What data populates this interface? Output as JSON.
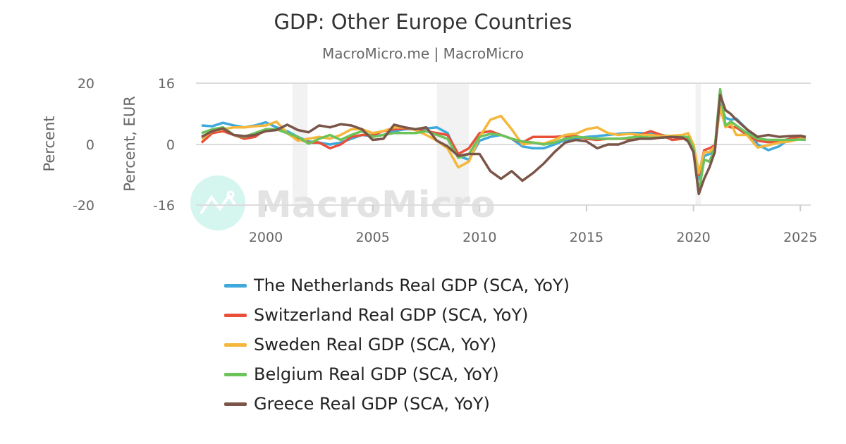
{
  "header": {
    "title": "GDP: Other Europe Countries",
    "subtitle": "MacroMicro.me | MacroMicro"
  },
  "watermark": {
    "text": "MacroMicro",
    "circle_color": "#d5f5ef"
  },
  "chart_data": {
    "type": "line",
    "title": "GDP: Other Europe Countries",
    "subtitle": "MacroMicro.me | MacroMicro",
    "y_axes": [
      {
        "title": "Percent",
        "ticks": [
          "20",
          "0",
          "-20"
        ],
        "range": [
          -20,
          20
        ],
        "side": "left-outer"
      },
      {
        "title": "Percent, EUR",
        "ticks": [
          "16",
          "0",
          "-16"
        ],
        "range": [
          -16,
          16
        ],
        "side": "left-inner"
      }
    ],
    "x_ticks": [
      "2000",
      "2005",
      "2010",
      "2015",
      "2020",
      "2025"
    ],
    "x_range": [
      1997,
      2025.5
    ],
    "grid": true,
    "legend_position": "bottom",
    "recession_bands": [
      [
        2001.25,
        2001.95
      ],
      [
        2008.0,
        2009.5
      ],
      [
        2020.1,
        2020.35
      ]
    ],
    "x": [
      1997.0,
      1997.5,
      1998.0,
      1998.5,
      1999.0,
      1999.5,
      2000.0,
      2000.5,
      2001.0,
      2001.5,
      2002.0,
      2002.5,
      2003.0,
      2003.5,
      2004.0,
      2004.5,
      2005.0,
      2005.5,
      2006.0,
      2006.5,
      2007.0,
      2007.5,
      2008.0,
      2008.5,
      2009.0,
      2009.5,
      2010.0,
      2010.5,
      2011.0,
      2011.5,
      2012.0,
      2012.5,
      2013.0,
      2013.5,
      2014.0,
      2014.5,
      2015.0,
      2015.5,
      2016.0,
      2016.5,
      2017.0,
      2017.5,
      2018.0,
      2018.5,
      2019.0,
      2019.5,
      2019.75,
      2020.0,
      2020.25,
      2020.5,
      2020.75,
      2021.0,
      2021.25,
      2021.5,
      2021.75,
      2022.0,
      2022.5,
      2023.0,
      2023.5,
      2024.0,
      2024.5,
      2025.0,
      2025.25
    ],
    "series": [
      {
        "name": "The Netherlands Real GDP (SCA, YoY)",
        "color": "#3fa9dc",
        "values": [
          5,
          4.8,
          5.7,
          5,
          4.5,
          5,
          5.8,
          4.5,
          3.5,
          2,
          0.8,
          0.5,
          0,
          0.5,
          1.5,
          2.5,
          2.2,
          2.5,
          3.5,
          4,
          4,
          4.2,
          4.5,
          3,
          -3,
          -4,
          1,
          2,
          2.5,
          1.5,
          -0.5,
          -1,
          -1,
          0,
          1.2,
          1.5,
          2,
          2.2,
          2.5,
          2.8,
          3,
          3,
          2.8,
          2.5,
          2,
          1.8,
          1.5,
          -0.3,
          -9,
          -3,
          -2.5,
          -1,
          10.5,
          7,
          6.5,
          6.8,
          4,
          0,
          -1.5,
          -0.5,
          1.5,
          2.2,
          1.8
        ]
      },
      {
        "name": "Switzerland Real GDP (SCA, YoY)",
        "color": "#e8503a",
        "values": [
          0.5,
          3,
          3.5,
          2.5,
          1.5,
          2,
          4,
          4,
          3,
          1.5,
          0.5,
          0.5,
          -1,
          0,
          2,
          2.5,
          2.5,
          3.5,
          4,
          4.2,
          4,
          3.5,
          3,
          2.5,
          -2.5,
          -1,
          3,
          3.5,
          2.5,
          1.5,
          0.5,
          2,
          2,
          2,
          2.2,
          2.2,
          1.5,
          1.2,
          1.5,
          1.5,
          1.5,
          2.5,
          3.5,
          2.5,
          1.2,
          1.5,
          1.5,
          0,
          -8,
          -1.5,
          -1,
          -0.2,
          9.5,
          5,
          4.5,
          4.5,
          2.5,
          1,
          0.6,
          0.8,
          1.5,
          2,
          1.8
        ]
      },
      {
        "name": "Sweden Real GDP (SCA, YoY)",
        "color": "#f5b73b",
        "values": [
          1.5,
          3.5,
          4,
          4.5,
          4.5,
          4.8,
          5,
          6,
          3,
          1,
          1.5,
          2,
          1.5,
          2.5,
          4,
          4,
          3,
          3.5,
          4.5,
          4.5,
          3.8,
          2.5,
          1,
          -1,
          -6,
          -4.5,
          2,
          6.5,
          7.5,
          4,
          0,
          0.5,
          0.2,
          1.2,
          2.5,
          2.8,
          4,
          4.5,
          3,
          2.5,
          2.8,
          2.5,
          2.5,
          2.2,
          2.3,
          2.5,
          3,
          0,
          -7.5,
          -2,
          -2,
          -0.5,
          10,
          4.5,
          5.5,
          2.5,
          2.5,
          -0.8,
          -0.2,
          0.5,
          0.8,
          1.5,
          1.2
        ]
      },
      {
        "name": "Belgium Real GDP (SCA, YoY)",
        "color": "#6cc35a",
        "values": [
          3,
          4,
          4.5,
          2.5,
          2,
          3,
          4,
          4,
          3,
          2,
          0.2,
          1.5,
          2.5,
          1.2,
          2.5,
          3.5,
          2,
          2.5,
          3,
          3,
          3,
          3.5,
          2.5,
          1.5,
          -3.5,
          -2.5,
          2,
          2.8,
          2.5,
          1.5,
          0.8,
          0.5,
          0,
          0.5,
          1.5,
          2,
          1.8,
          1.5,
          1.5,
          1.5,
          1.8,
          2,
          1.8,
          1.8,
          2,
          2,
          2,
          -1,
          -12.5,
          -4,
          -4.5,
          -1,
          14.5,
          5,
          6,
          5,
          3,
          1.5,
          1.2,
          1.2,
          1.2,
          1.3,
          1.2
        ]
      },
      {
        "name": "Greece Real GDP (SCA, YoY)",
        "color": "#7a5548",
        "values": [
          2,
          3.5,
          4.2,
          2.5,
          2.2,
          2.5,
          3.5,
          3.8,
          5.2,
          3.8,
          3.2,
          5,
          4.5,
          5.3,
          5,
          4,
          1.2,
          1.5,
          5.2,
          4.5,
          4,
          4.5,
          1,
          -0.5,
          -3,
          -2.5,
          -2.5,
          -7,
          -9,
          -7,
          -9.5,
          -7.5,
          -5,
          -2,
          0.5,
          1.2,
          0.8,
          -1,
          0,
          0,
          1,
          1.5,
          1.5,
          1.8,
          2,
          1.8,
          0.8,
          -2,
          -13,
          -9,
          -6,
          -2,
          13,
          9,
          8,
          6.5,
          4,
          2,
          2.5,
          2,
          2.2,
          2.3,
          2
        ]
      }
    ]
  }
}
